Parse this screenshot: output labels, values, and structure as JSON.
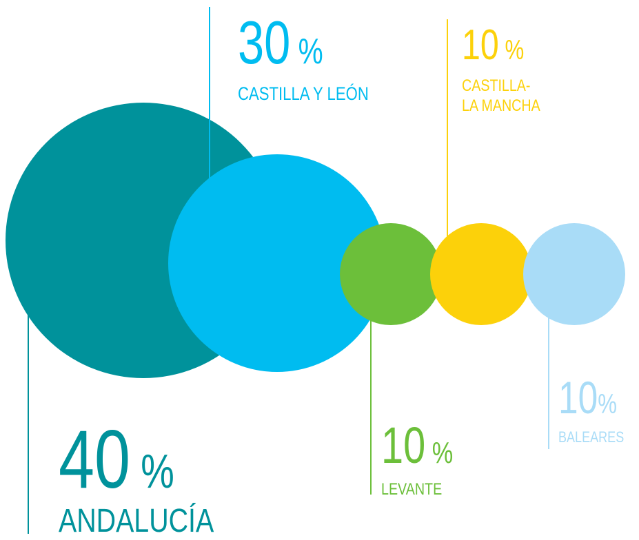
{
  "chart_data": {
    "type": "bubble",
    "categories": [
      "ANDALUCÍA",
      "CASTILLA Y LEÓN",
      "LEVANTE",
      "CASTILLA-\nLA MANCHA",
      "BALEARES"
    ],
    "values": [
      40,
      30,
      10,
      10,
      10
    ],
    "value_labels": [
      "40 %",
      "30 %",
      "10 %",
      "10 %",
      "10%"
    ],
    "colors": [
      "#00929b",
      "#00bcf0",
      "#6cbf3a",
      "#fcd10a",
      "#a9dcf7"
    ]
  }
}
